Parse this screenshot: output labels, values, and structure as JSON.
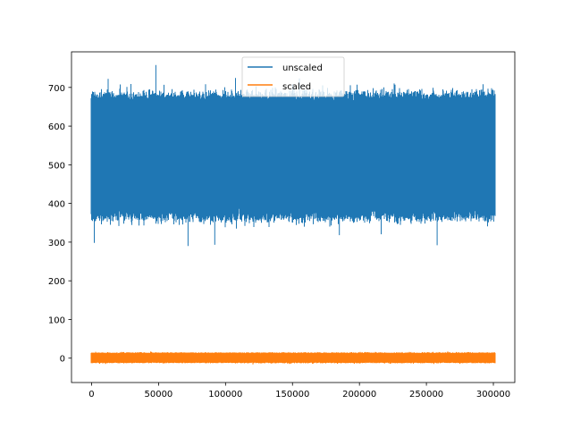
{
  "chart_data": {
    "type": "line",
    "title": "",
    "xlabel": "",
    "ylabel": "",
    "xlim": [
      -15000,
      316000
    ],
    "ylim": [
      -63,
      792
    ],
    "x_ticks": [
      0,
      50000,
      100000,
      150000,
      200000,
      250000,
      300000
    ],
    "x_tick_labels": [
      "0",
      "50000",
      "100000",
      "150000",
      "200000",
      "250000",
      "300000"
    ],
    "y_ticks": [
      0,
      100,
      200,
      300,
      400,
      500,
      600,
      700
    ],
    "y_tick_labels": [
      "0",
      "100",
      "200",
      "300",
      "400",
      "500",
      "600",
      "700"
    ],
    "grid": false,
    "legend": {
      "placement": "top-center"
    },
    "series": [
      {
        "name": "unscaled",
        "color": "#1f77b4",
        "x_range": [
          0,
          301000
        ],
        "typical_band": [
          365,
          680
        ],
        "overall_range": [
          290,
          758
        ],
        "extremes": [
          {
            "x": 2000,
            "y": 298
          },
          {
            "x": 48000,
            "y": 758
          },
          {
            "x": 72000,
            "y": 290
          },
          {
            "x": 92000,
            "y": 293
          },
          {
            "x": 185000,
            "y": 318
          },
          {
            "x": 258000,
            "y": 292
          }
        ]
      },
      {
        "name": "scaled",
        "color": "#ff7f0e",
        "x_range": [
          0,
          301000
        ],
        "typical_band": [
          -12,
          14
        ],
        "overall_range": [
          -22,
          25
        ]
      }
    ]
  }
}
